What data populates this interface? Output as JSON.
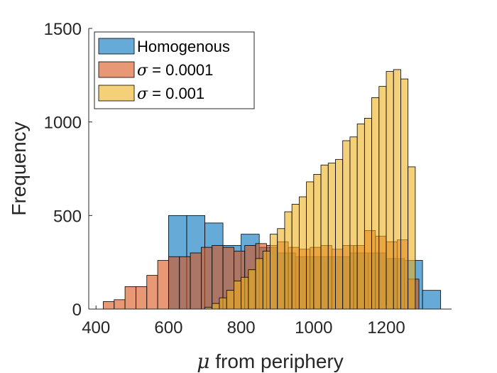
{
  "chart_data": {
    "type": "histogram",
    "xlabel_symbol": "μ",
    "xlabel_text": " from periphery",
    "ylabel": "Frequency",
    "xlim": [
      380,
      1380
    ],
    "ylim": [
      0,
      1500
    ],
    "xticks": [
      400,
      600,
      800,
      1000,
      1200
    ],
    "yticks": [
      0,
      500,
      1000,
      1500
    ],
    "grid": false,
    "legend_placement": "top-left",
    "series": [
      {
        "name": "Homogenous",
        "color": "#0072BD",
        "bin_edges": [
          600,
          650,
          700,
          750,
          800,
          850,
          900,
          950,
          1000,
          1050,
          1100,
          1150,
          1200,
          1250,
          1300,
          1350
        ],
        "counts": [
          500,
          500,
          460,
          340,
          400,
          330,
          300,
          280,
          280,
          280,
          300,
          300,
          270,
          260,
          100
        ]
      },
      {
        "name_symbol": "σ",
        "name_value": " = 0.0001",
        "color": "#D95319",
        "bin_edges": [
          420,
          450,
          480,
          510,
          540,
          570,
          600,
          630,
          660,
          690,
          720,
          750,
          780,
          810,
          840,
          870,
          900,
          930,
          960,
          990,
          1020,
          1050,
          1080,
          1110,
          1140,
          1170,
          1200,
          1230,
          1260,
          1290
        ],
        "counts": [
          40,
          50,
          120,
          120,
          180,
          260,
          280,
          280,
          300,
          330,
          340,
          330,
          310,
          340,
          350,
          340,
          360,
          330,
          320,
          330,
          340,
          320,
          340,
          340,
          420,
          390,
          360,
          370,
          160
        ]
      },
      {
        "name_symbol": "σ",
        "name_value": " = 0.001",
        "color": "#EDB120",
        "bin_edges": [
          700,
          720,
          740,
          760,
          780,
          800,
          820,
          840,
          860,
          880,
          900,
          920,
          940,
          960,
          980,
          1000,
          1020,
          1040,
          1060,
          1080,
          1100,
          1120,
          1140,
          1160,
          1180,
          1200,
          1220,
          1240,
          1260,
          1280
        ],
        "counts": [
          10,
          30,
          60,
          100,
          150,
          170,
          210,
          270,
          310,
          400,
          430,
          520,
          560,
          600,
          680,
          720,
          770,
          780,
          800,
          900,
          920,
          990,
          1020,
          1130,
          1190,
          1270,
          1280,
          1230,
          760
        ]
      }
    ]
  }
}
